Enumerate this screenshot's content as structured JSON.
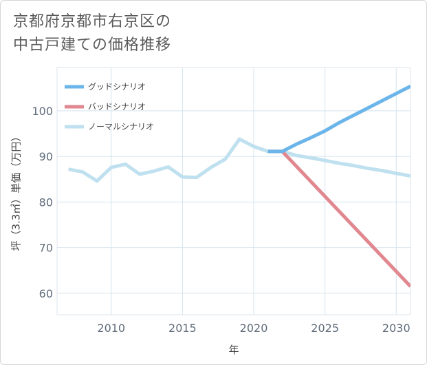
{
  "title_lines": [
    "京都府京都市右京区の",
    "中古戸建ての価格推移"
  ],
  "chart_data": {
    "type": "line",
    "xlabel": "年",
    "ylabel": "坪（3.3㎡）単価（万円）",
    "xlim": [
      2006.2,
      2031
    ],
    "ylim": [
      55.3,
      109.5
    ],
    "xticks": [
      2010,
      2015,
      2020,
      2025,
      2030
    ],
    "yticks": [
      60,
      70,
      80,
      90,
      100
    ],
    "grid": true,
    "legend_position": "top-left",
    "series": [
      {
        "name": "グッドシナリオ",
        "color": "#6bb5ea",
        "x": [
          2021,
          2022,
          2023,
          2024,
          2025,
          2026,
          2027,
          2028,
          2029,
          2030,
          2031
        ],
        "y": [
          91.1,
          91.1,
          92.7,
          94.1,
          95.6,
          97.4,
          99.0,
          100.6,
          102.2,
          103.8,
          105.4
        ]
      },
      {
        "name": "バッドシナリオ",
        "color": "#e0878f",
        "x": [
          2021,
          2022,
          2031
        ],
        "y": [
          91.1,
          91.1,
          61.5
        ]
      },
      {
        "name": "ノーマルシナリオ",
        "color": "#bfe0ef",
        "x": [
          2007,
          2008,
          2009,
          2010,
          2011,
          2012,
          2013,
          2014,
          2015,
          2016,
          2017,
          2018,
          2019,
          2020,
          2021,
          2022,
          2023,
          2024,
          2025,
          2026,
          2027,
          2028,
          2029,
          2030,
          2031
        ],
        "y": [
          87.2,
          86.6,
          84.6,
          87.6,
          88.3,
          86.1,
          86.8,
          87.7,
          85.5,
          85.4,
          87.6,
          89.4,
          93.8,
          92.2,
          91.1,
          91.1,
          90.2,
          89.7,
          89.1,
          88.5,
          88.0,
          87.4,
          86.9,
          86.3,
          85.7
        ]
      }
    ]
  }
}
